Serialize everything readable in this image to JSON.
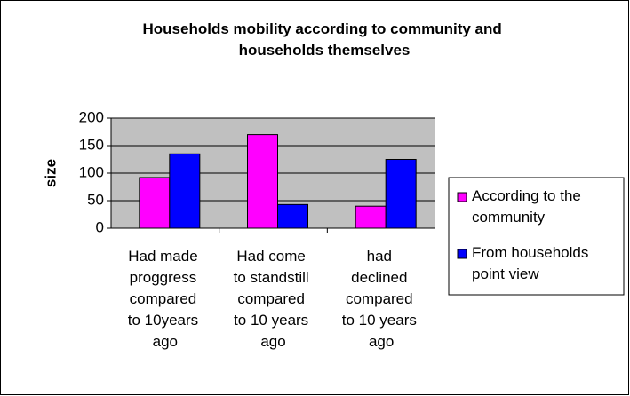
{
  "chart_data": {
    "type": "bar",
    "title": "Households mobility according to community and households themselves",
    "y_label": "size",
    "categories": [
      "Had made proggress compared to 10years ago",
      "Had come to standstill compared to 10 years ago",
      "had declined compared to 10 years ago"
    ],
    "series": [
      {
        "name": "According to the community",
        "color": "#ff00ff",
        "values": [
          92,
          170,
          40
        ]
      },
      {
        "name": "From households point view",
        "color": "#0000ff",
        "values": [
          135,
          43,
          125
        ]
      }
    ],
    "ylim": [
      0,
      200
    ],
    "yticks": [
      0,
      50,
      100,
      150,
      200
    ],
    "grid": true,
    "legend": "right"
  }
}
